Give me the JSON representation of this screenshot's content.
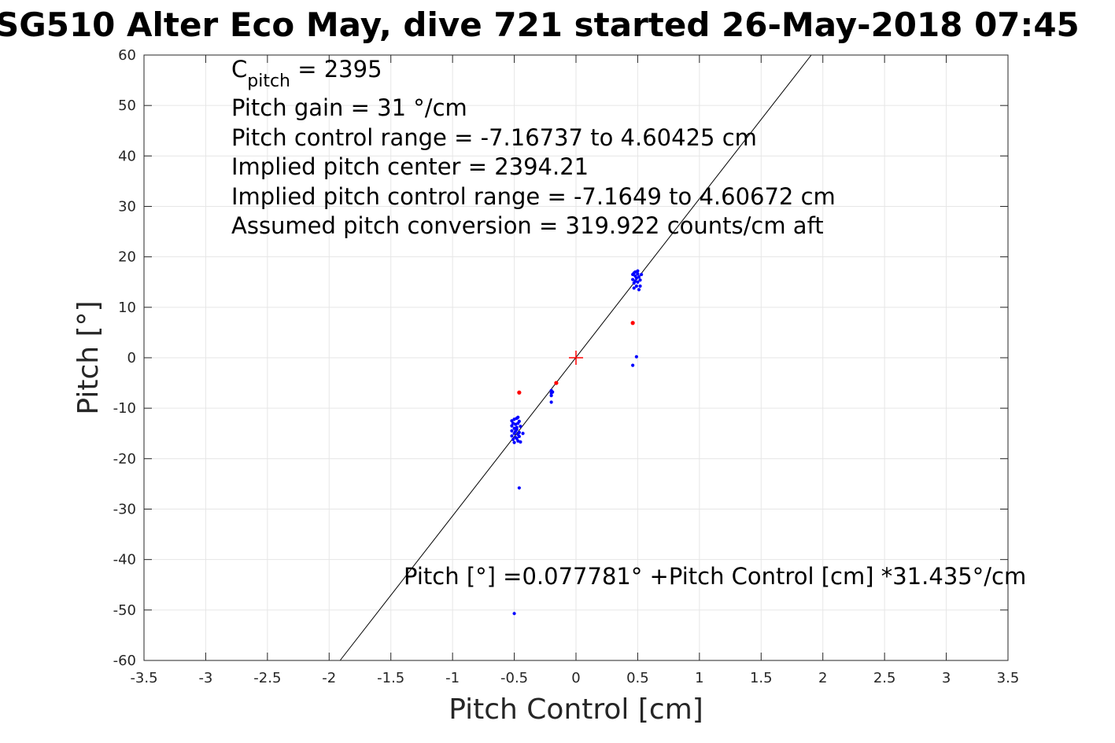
{
  "chart_data": {
    "type": "scatter",
    "title": "SG510 Alter Eco May, dive 721 started 26-May-2018 07:45",
    "xlabel": "Pitch Control [cm]",
    "ylabel": "Pitch [°]",
    "xlim": [
      -3.5,
      3.5
    ],
    "ylim": [
      -60,
      60
    ],
    "xticks": [
      -3.5,
      -3,
      -2.5,
      -2,
      -1.5,
      -1,
      -0.5,
      0,
      0.5,
      1,
      1.5,
      2,
      2.5,
      3,
      3.5
    ],
    "xtick_labels": [
      "-3.5",
      "-3",
      "-2.5",
      "-2",
      "-1.5",
      "-1",
      "-0.5",
      "0",
      "0.5",
      "1",
      "1.5",
      "2",
      "2.5",
      "3",
      "3.5"
    ],
    "yticks": [
      -60,
      -50,
      -40,
      -30,
      -20,
      -10,
      0,
      10,
      20,
      30,
      40,
      50,
      60
    ],
    "ytick_labels": [
      "-60",
      "-50",
      "-40",
      "-30",
      "-20",
      "-10",
      "0",
      "10",
      "20",
      "30",
      "40",
      "50",
      "60"
    ],
    "grid": true,
    "fit_line": {
      "intercept": 0.077781,
      "slope": 31.435
    },
    "center_marker": {
      "x": 0,
      "y": 0,
      "color": "#ff0000"
    },
    "annotations": {
      "cpitch_main": "C",
      "cpitch_sub": "pitch",
      "cpitch_value": " = 2395",
      "pitch_gain": "Pitch gain = 31 °/cm",
      "control_range": "Pitch control range = -7.16737 to 4.60425 cm",
      "implied_center": "Implied pitch center = 2394.21",
      "implied_range": "Implied pitch control range = -7.1649 to 4.60672 cm",
      "conversion": "Assumed pitch conversion = 319.922 counts/cm aft",
      "fit_equation": "Pitch [°] =0.077781° +Pitch Control [cm] *31.435°/cm"
    },
    "series": [
      {
        "color": "#0000ff",
        "points": [
          [
            -0.52,
            -12.5
          ],
          [
            -0.52,
            -13.5
          ],
          [
            -0.52,
            -14.5
          ],
          [
            -0.52,
            -15.5
          ],
          [
            -0.51,
            -16.2
          ],
          [
            -0.51,
            -13.0
          ],
          [
            -0.5,
            -12.2
          ],
          [
            -0.5,
            -14.0
          ],
          [
            -0.5,
            -15.0
          ],
          [
            -0.5,
            -16.8
          ],
          [
            -0.49,
            -13.2
          ],
          [
            -0.49,
            -15.8
          ],
          [
            -0.48,
            -12.0
          ],
          [
            -0.48,
            -14.2
          ],
          [
            -0.48,
            -16.0
          ],
          [
            -0.47,
            -11.8
          ],
          [
            -0.47,
            -13.0
          ],
          [
            -0.47,
            -15.2
          ],
          [
            -0.47,
            -16.5
          ],
          [
            -0.46,
            -12.6
          ],
          [
            -0.46,
            -14.8
          ],
          [
            -0.46,
            -15.6
          ],
          [
            -0.45,
            -13.6
          ],
          [
            -0.45,
            -16.7
          ],
          [
            -0.49,
            -14.6
          ],
          [
            -0.48,
            -13.8
          ],
          [
            -0.43,
            -15.0
          ],
          [
            -0.46,
            -25.8
          ],
          [
            -0.5,
            -50.7
          ],
          [
            -0.2,
            -6.5
          ],
          [
            -0.2,
            -7.0
          ],
          [
            -0.2,
            -7.5
          ],
          [
            -0.2,
            -8.8
          ],
          [
            -0.19,
            -6.8
          ],
          [
            0.46,
            16.5
          ],
          [
            0.46,
            15.5
          ],
          [
            0.47,
            14.8
          ],
          [
            0.47,
            16.8
          ],
          [
            0.47,
            13.8
          ],
          [
            0.48,
            15.2
          ],
          [
            0.48,
            16.2
          ],
          [
            0.48,
            17.0
          ],
          [
            0.49,
            15.8
          ],
          [
            0.49,
            14.2
          ],
          [
            0.5,
            16.6
          ],
          [
            0.5,
            15.0
          ],
          [
            0.5,
            17.2
          ],
          [
            0.51,
            16.0
          ],
          [
            0.51,
            13.5
          ],
          [
            0.52,
            15.4
          ],
          [
            0.52,
            14.2
          ],
          [
            0.53,
            16.5
          ],
          [
            0.49,
            0.2
          ],
          [
            0.46,
            -1.5
          ]
        ]
      },
      {
        "color": "#ff0000",
        "points": [
          [
            -0.46,
            -6.9
          ],
          [
            0.46,
            6.9
          ],
          [
            -0.16,
            -5.0
          ]
        ]
      }
    ]
  }
}
